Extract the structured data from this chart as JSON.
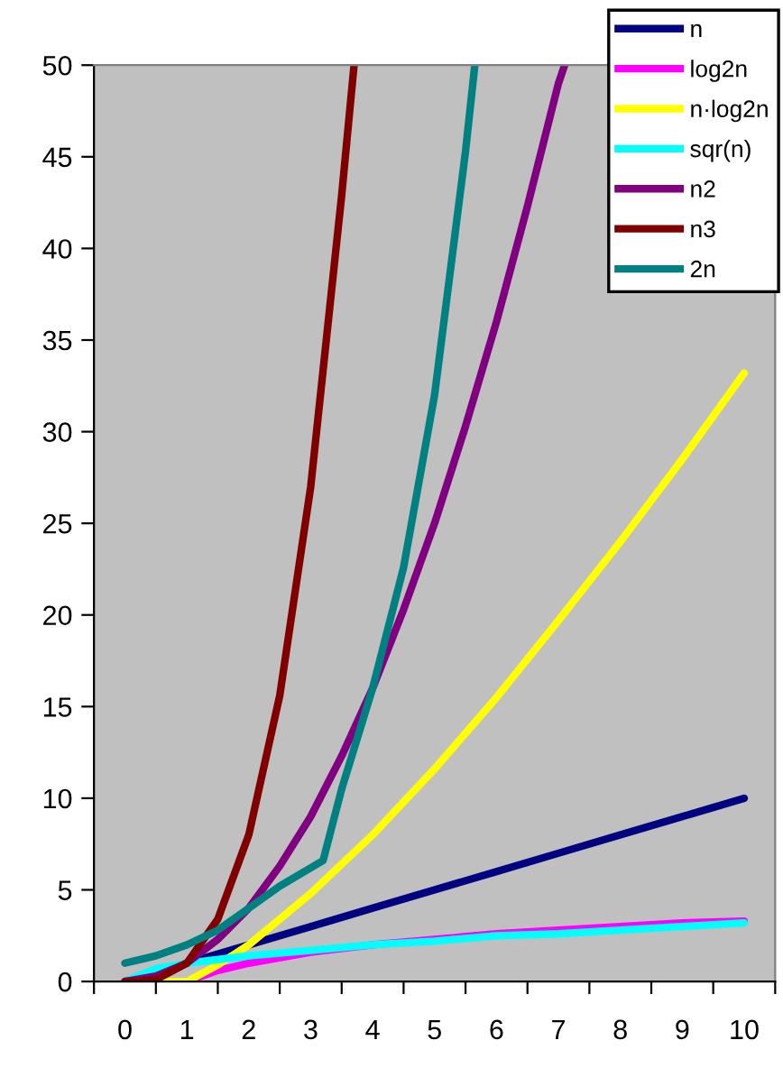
{
  "chart_data": {
    "type": "line",
    "xlim": [
      -0.5,
      10.5
    ],
    "xticks": [
      {
        "value": -0.5,
        "label": null
      },
      0,
      {
        "value": 0.5,
        "label": null
      },
      1,
      {
        "value": 1.5,
        "label": null
      },
      2,
      {
        "value": 2.5,
        "label": null
      },
      3,
      {
        "value": 3.5,
        "label": null
      },
      4,
      {
        "value": 4.5,
        "label": null
      },
      5,
      {
        "value": 5.5,
        "label": null
      },
      6,
      {
        "value": 6.5,
        "label": null
      },
      7,
      {
        "value": 7.5,
        "label": null
      },
      8,
      {
        "value": 8.5,
        "label": null
      },
      9,
      {
        "value": 9.5,
        "label": null
      },
      10,
      {
        "value": 10.5,
        "label": null
      }
    ],
    "ylim": [
      0,
      50
    ],
    "yticks": [
      0,
      5,
      10,
      15,
      20,
      25,
      30,
      35,
      40,
      45,
      50
    ],
    "grid": false,
    "legend": "top right",
    "marker": "none",
    "line_style": "solid",
    "series": [
      {
        "name": "n",
        "color": "#000080",
        "x": [
          0,
          1,
          2,
          3,
          4,
          5,
          6,
          7,
          8,
          9,
          10
        ],
        "values": [
          0,
          1,
          2,
          3,
          4,
          5,
          6,
          7,
          8,
          9,
          10
        ]
      },
      {
        "name": "log2n",
        "color": "#ff00ff",
        "x": [
          1,
          1.5,
          2,
          3,
          4,
          5,
          6,
          7,
          8,
          9,
          10
        ],
        "values": [
          0,
          0.6,
          1,
          1.6,
          2,
          2.3,
          2.6,
          2.8,
          3,
          3.2,
          3.3
        ]
      },
      {
        "name": "n·log2n",
        "color": "#ffff00",
        "x": [
          0,
          0.5,
          1,
          1.5,
          2,
          3,
          4,
          5,
          6,
          7,
          8,
          9,
          10
        ],
        "values": [
          0,
          0,
          0,
          0.9,
          2,
          4.8,
          8,
          11.6,
          15.5,
          19.7,
          24,
          28.5,
          33.2
        ]
      },
      {
        "name": "sqr(n)",
        "color": "#00ffff",
        "x": [
          0,
          0.5,
          1,
          2,
          3,
          4,
          5,
          6,
          7,
          8,
          9,
          10
        ],
        "values": [
          0,
          0.7,
          1,
          1.4,
          1.7,
          2,
          2.2,
          2.5,
          2.6,
          2.8,
          3,
          3.2
        ]
      },
      {
        "name": "n2",
        "color": "#800080",
        "x": [
          0,
          0.5,
          1,
          1.5,
          2,
          2.5,
          3,
          3.5,
          4,
          4.5,
          5,
          5.5,
          6,
          6.5,
          7,
          7.1
        ],
        "values": [
          0,
          0.3,
          1,
          2.3,
          4,
          6.3,
          9,
          12.3,
          16,
          20.3,
          25,
          30.3,
          36,
          42.3,
          49,
          50
        ]
      },
      {
        "name": "n3",
        "color": "#800000",
        "x": [
          0,
          0.5,
          1,
          1.5,
          2,
          2.5,
          3,
          3.5,
          3.7
        ],
        "values": [
          0,
          0.1,
          1,
          3.4,
          8,
          15.6,
          27,
          42.9,
          50
        ]
      },
      {
        "name": "2n",
        "color": "#008080",
        "x": [
          0,
          0.5,
          1,
          1.5,
          2,
          2.5,
          3.2,
          3.5,
          4,
          4.5,
          5,
          5.5,
          5.65
        ],
        "values": [
          1,
          1.4,
          2,
          2.8,
          4,
          5.2,
          6.6,
          10.5,
          16,
          22.6,
          32,
          45.3,
          50
        ]
      }
    ]
  }
}
